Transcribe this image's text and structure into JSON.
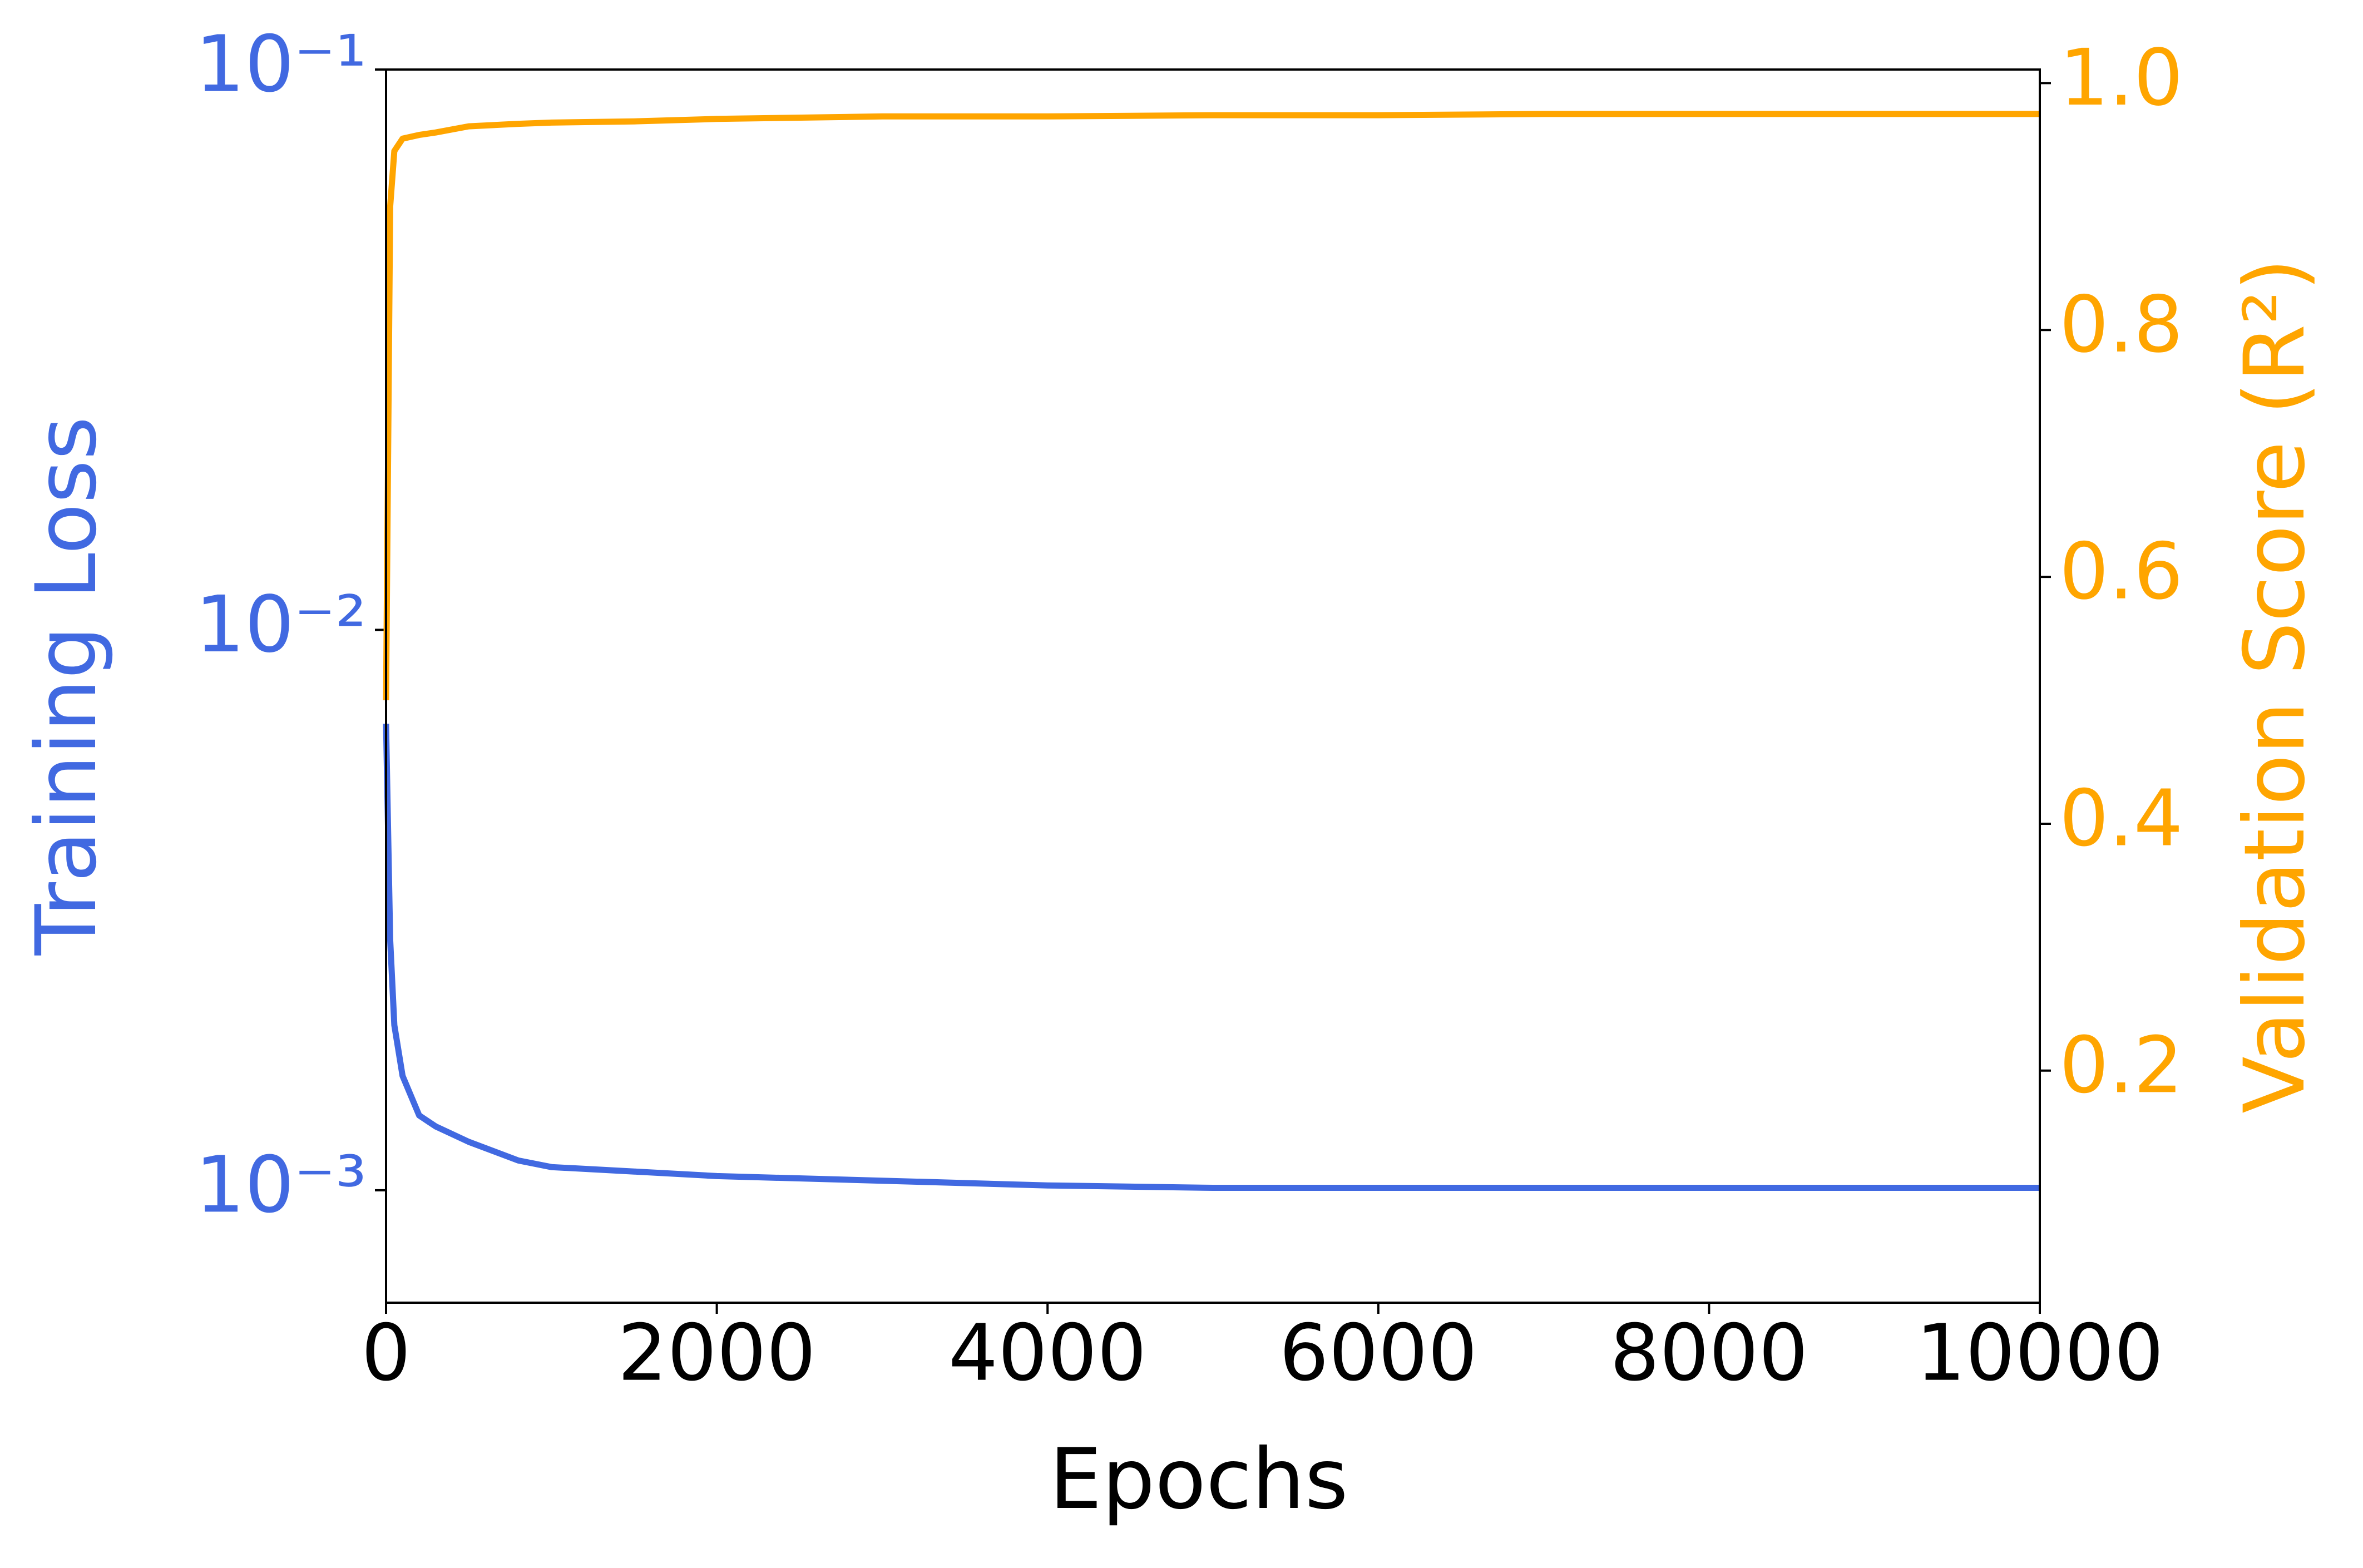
{
  "chart_data": {
    "type": "line",
    "xlabel": "Epochs",
    "ylabel": "Training Loss",
    "y2label": "Validation Score (R²)",
    "x": [
      0,
      25,
      50,
      100,
      200,
      300,
      500,
      800,
      1000,
      1500,
      2000,
      3000,
      4000,
      5000,
      6000,
      7000,
      8000,
      9000,
      10000
    ],
    "series": [
      {
        "name": "Training Loss",
        "color": "#4169e1",
        "axis": "y",
        "values": [
          0.0068,
          0.0028,
          0.00197,
          0.0016,
          0.00136,
          0.0013,
          0.00122,
          0.00113,
          0.0011,
          0.00108,
          0.00106,
          0.00104,
          0.00102,
          0.00101,
          0.00101,
          0.00101,
          0.00101,
          0.00101,
          0.00101
        ]
      },
      {
        "name": "Validation Score (R²)",
        "color": "#ffa500",
        "axis": "y2",
        "values": [
          0.5,
          0.9,
          0.945,
          0.955,
          0.958,
          0.96,
          0.965,
          0.967,
          0.968,
          0.969,
          0.971,
          0.973,
          0.973,
          0.974,
          0.974,
          0.975,
          0.975,
          0.975,
          0.975
        ]
      }
    ],
    "xlim": [
      0,
      10000
    ],
    "xticks": [
      0,
      2000,
      4000,
      6000,
      8000,
      10000
    ],
    "ylim": [
      0.00063,
      0.1
    ],
    "ylog": true,
    "yticks": [
      {
        "value": 0.001,
        "label": "10⁻³"
      },
      {
        "value": 0.01,
        "label": "10⁻²"
      },
      {
        "value": 0.1,
        "label": "10⁻¹"
      }
    ],
    "y2lim": [
      0.012,
      1.011
    ],
    "y2ticks": [
      0.2,
      0.4,
      0.6,
      0.8,
      {
        "value": 1,
        "label": "1.0"
      }
    ],
    "grid": false
  }
}
